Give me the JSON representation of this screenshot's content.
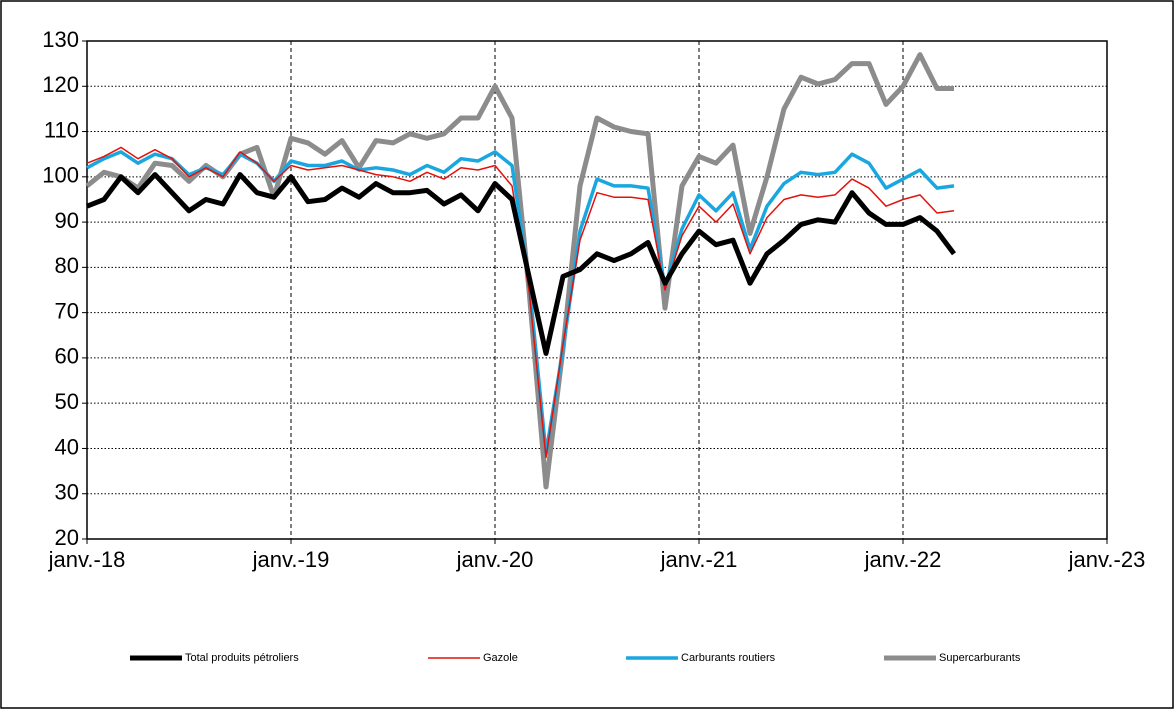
{
  "chart_data": {
    "type": "line",
    "x": [
      0,
      1,
      2,
      3,
      4,
      5,
      6,
      7,
      8,
      9,
      10,
      11,
      12,
      13,
      14,
      15,
      16,
      17,
      18,
      19,
      20,
      21,
      22,
      23,
      24,
      25,
      26,
      27,
      28,
      29,
      30,
      31,
      32,
      33,
      34,
      35,
      36,
      37,
      38,
      39,
      40,
      41,
      42,
      43,
      44,
      45,
      46,
      47,
      48,
      49,
      50,
      51
    ],
    "xlim": [
      0,
      60
    ],
    "xticks": [
      {
        "value": 0,
        "label": "janv.-18"
      },
      {
        "value": 12,
        "label": "janv.-19"
      },
      {
        "value": 24,
        "label": "janv.-20"
      },
      {
        "value": 36,
        "label": "janv.-21"
      },
      {
        "value": 48,
        "label": "janv.-22"
      },
      {
        "value": 60,
        "label": "janv.-23"
      }
    ],
    "ylim": [
      20,
      130
    ],
    "yticks": [
      20,
      30,
      40,
      50,
      60,
      70,
      80,
      90,
      100,
      110,
      120,
      130
    ],
    "grid": true,
    "legend": "bottom",
    "series": [
      {
        "name": "Total produits pétroliers",
        "color": "#000000",
        "values": [
          93.5,
          95,
          100,
          96.5,
          100.5,
          96.5,
          92.5,
          95,
          94,
          100.5,
          96.5,
          95.5,
          100,
          94.5,
          95,
          97.5,
          95.5,
          98.5,
          96.5,
          96.5,
          97,
          94,
          96,
          92.5,
          98.5,
          95,
          78,
          61,
          78,
          79.5,
          83,
          81.5,
          83,
          85.5,
          76.5,
          83,
          88,
          85,
          86,
          76.5,
          83,
          86,
          89.5,
          90.5,
          90,
          96.5,
          92,
          89.5,
          89.5,
          91,
          88,
          83
        ]
      },
      {
        "name": "Gazole",
        "color": "#e3120b",
        "values": [
          103,
          104.5,
          106.5,
          104,
          106,
          104,
          100,
          102,
          100,
          105.5,
          103,
          99,
          102.5,
          101.5,
          102,
          102.5,
          101.5,
          100.5,
          100,
          99,
          101,
          99.5,
          102,
          101.5,
          102.5,
          98,
          75,
          38,
          63,
          86,
          96.5,
          95.5,
          95.5,
          95,
          75,
          87,
          93.5,
          90,
          94,
          83,
          91,
          95,
          96,
          95.5,
          96,
          99.5,
          97.5,
          93.5,
          95,
          96,
          92,
          92.5
        ]
      },
      {
        "name": "Carburants routiers",
        "color": "#1aa7e0",
        "values": [
          102,
          104,
          105.5,
          103,
          105,
          104,
          100.5,
          102,
          100.5,
          105,
          103,
          99,
          103.5,
          102.5,
          102.5,
          103.5,
          101.5,
          102,
          101.5,
          100.5,
          102.5,
          101,
          104,
          103.5,
          105.5,
          102.5,
          77,
          39,
          62,
          88,
          99.5,
          98,
          98,
          97.5,
          75.5,
          88.5,
          96,
          92.5,
          96.5,
          84,
          93.5,
          98.5,
          101,
          100.5,
          101,
          105,
          103,
          97.5,
          99.5,
          101.5,
          97.5,
          98
        ]
      },
      {
        "name": "Supercarburants",
        "color": "#8c8c8c",
        "values": [
          98,
          101,
          100,
          97.5,
          103,
          102.5,
          99,
          102.5,
          100,
          105,
          106.5,
          95.5,
          108.5,
          107.5,
          105,
          108,
          102,
          108,
          107.5,
          109.5,
          108.5,
          109.5,
          113,
          113,
          120,
          113,
          75,
          31.5,
          62,
          98,
          113,
          111,
          110,
          109.5,
          71,
          98,
          104.5,
          103,
          107,
          87.5,
          100,
          115,
          122,
          120.5,
          121.5,
          125,
          125,
          116,
          120,
          127,
          119.5,
          119.5
        ]
      }
    ]
  }
}
